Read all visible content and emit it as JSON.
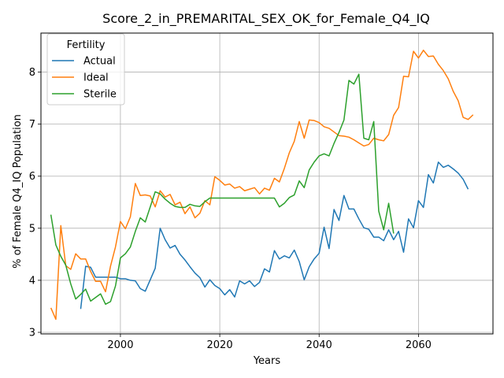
{
  "chart_data": {
    "type": "line",
    "title": "Score_2_in_PREMARITAL_SEX_OK_for_Female_Q4_IQ",
    "xlabel": "Years",
    "ylabel": "% of Female Q4_IQ Population",
    "xlim": [
      1984,
      2075
    ],
    "ylim": [
      2.97,
      8.75
    ],
    "xticks": [
      2000,
      2020,
      2040,
      2060
    ],
    "yticks": [
      3,
      4,
      5,
      6,
      7,
      8
    ],
    "grid": true,
    "legend": {
      "title": "Fertility",
      "placement": "top-left"
    },
    "series": [
      {
        "name": "Actual",
        "color": "#1f77b4",
        "points": [
          [
            1992,
            3.45
          ],
          [
            1993,
            4.27
          ],
          [
            1994,
            4.25
          ],
          [
            1995,
            4.06
          ],
          [
            1996,
            4.06
          ],
          [
            1997,
            4.06
          ],
          [
            1998,
            4.06
          ],
          [
            1999,
            4.06
          ],
          [
            2000,
            4.03
          ],
          [
            2001,
            4.03
          ],
          [
            2002,
            4.0
          ],
          [
            2003,
            3.99
          ],
          [
            2004,
            3.84
          ],
          [
            2005,
            3.79
          ],
          [
            2006,
            4.01
          ],
          [
            2007,
            4.23
          ],
          [
            2008,
            5.0
          ],
          [
            2009,
            4.78
          ],
          [
            2010,
            4.62
          ],
          [
            2011,
            4.67
          ],
          [
            2012,
            4.5
          ],
          [
            2013,
            4.39
          ],
          [
            2014,
            4.26
          ],
          [
            2015,
            4.14
          ],
          [
            2016,
            4.05
          ],
          [
            2017,
            3.87
          ],
          [
            2018,
            4.01
          ],
          [
            2019,
            3.9
          ],
          [
            2020,
            3.84
          ],
          [
            2021,
            3.72
          ],
          [
            2022,
            3.82
          ],
          [
            2023,
            3.68
          ],
          [
            2024,
            3.99
          ],
          [
            2025,
            3.93
          ],
          [
            2026,
            3.99
          ],
          [
            2027,
            3.88
          ],
          [
            2028,
            3.96
          ],
          [
            2029,
            4.22
          ],
          [
            2030,
            4.16
          ],
          [
            2031,
            4.57
          ],
          [
            2032,
            4.41
          ],
          [
            2033,
            4.47
          ],
          [
            2034,
            4.43
          ],
          [
            2035,
            4.58
          ],
          [
            2036,
            4.36
          ],
          [
            2037,
            4.01
          ],
          [
            2038,
            4.26
          ],
          [
            2039,
            4.41
          ],
          [
            2040,
            4.52
          ],
          [
            2041,
            5.02
          ],
          [
            2042,
            4.61
          ],
          [
            2043,
            5.36
          ],
          [
            2044,
            5.15
          ],
          [
            2045,
            5.63
          ],
          [
            2046,
            5.37
          ],
          [
            2047,
            5.37
          ],
          [
            2048,
            5.18
          ],
          [
            2049,
            5.01
          ],
          [
            2050,
            4.98
          ],
          [
            2051,
            4.83
          ],
          [
            2052,
            4.83
          ],
          [
            2053,
            4.76
          ],
          [
            2054,
            4.97
          ],
          [
            2055,
            4.78
          ],
          [
            2056,
            4.94
          ],
          [
            2057,
            4.54
          ],
          [
            2058,
            5.18
          ],
          [
            2059,
            5.01
          ],
          [
            2060,
            5.53
          ],
          [
            2061,
            5.4
          ],
          [
            2062,
            6.03
          ],
          [
            2063,
            5.87
          ],
          [
            2064,
            6.27
          ],
          [
            2065,
            6.17
          ],
          [
            2066,
            6.21
          ],
          [
            2067,
            6.14
          ],
          [
            2068,
            6.06
          ],
          [
            2069,
            5.94
          ],
          [
            2070,
            5.75
          ]
        ]
      },
      {
        "name": "Ideal",
        "color": "#ff7f0e",
        "points": [
          [
            1986,
            3.47
          ],
          [
            1987,
            3.25
          ],
          [
            1988,
            5.05
          ],
          [
            1989,
            4.28
          ],
          [
            1990,
            4.21
          ],
          [
            1991,
            4.51
          ],
          [
            1992,
            4.41
          ],
          [
            1993,
            4.41
          ],
          [
            1994,
            4.17
          ],
          [
            1995,
            3.98
          ],
          [
            1996,
            3.98
          ],
          [
            1997,
            3.78
          ],
          [
            1998,
            4.27
          ],
          [
            1999,
            4.64
          ],
          [
            2000,
            5.13
          ],
          [
            2001,
            4.99
          ],
          [
            2002,
            5.22
          ],
          [
            2003,
            5.86
          ],
          [
            2004,
            5.63
          ],
          [
            2005,
            5.64
          ],
          [
            2006,
            5.62
          ],
          [
            2007,
            5.41
          ],
          [
            2008,
            5.72
          ],
          [
            2009,
            5.6
          ],
          [
            2010,
            5.65
          ],
          [
            2011,
            5.45
          ],
          [
            2012,
            5.5
          ],
          [
            2013,
            5.28
          ],
          [
            2014,
            5.41
          ],
          [
            2015,
            5.2
          ],
          [
            2016,
            5.29
          ],
          [
            2017,
            5.53
          ],
          [
            2018,
            5.45
          ],
          [
            2019,
            5.99
          ],
          [
            2020,
            5.92
          ],
          [
            2021,
            5.83
          ],
          [
            2022,
            5.85
          ],
          [
            2023,
            5.77
          ],
          [
            2024,
            5.8
          ],
          [
            2025,
            5.72
          ],
          [
            2026,
            5.75
          ],
          [
            2027,
            5.78
          ],
          [
            2028,
            5.66
          ],
          [
            2029,
            5.77
          ],
          [
            2030,
            5.73
          ],
          [
            2031,
            5.96
          ],
          [
            2032,
            5.89
          ],
          [
            2033,
            6.15
          ],
          [
            2034,
            6.45
          ],
          [
            2035,
            6.67
          ],
          [
            2036,
            7.05
          ],
          [
            2037,
            6.73
          ],
          [
            2038,
            7.08
          ],
          [
            2039,
            7.07
          ],
          [
            2040,
            7.03
          ],
          [
            2041,
            6.95
          ],
          [
            2042,
            6.92
          ],
          [
            2043,
            6.85
          ],
          [
            2044,
            6.78
          ],
          [
            2045,
            6.77
          ],
          [
            2046,
            6.75
          ],
          [
            2047,
            6.7
          ],
          [
            2048,
            6.64
          ],
          [
            2049,
            6.58
          ],
          [
            2050,
            6.61
          ],
          [
            2051,
            6.73
          ],
          [
            2052,
            6.7
          ],
          [
            2053,
            6.68
          ],
          [
            2054,
            6.8
          ],
          [
            2055,
            7.17
          ],
          [
            2056,
            7.32
          ],
          [
            2057,
            7.92
          ],
          [
            2058,
            7.91
          ],
          [
            2059,
            8.4
          ],
          [
            2060,
            8.27
          ],
          [
            2061,
            8.42
          ],
          [
            2062,
            8.3
          ],
          [
            2063,
            8.31
          ],
          [
            2064,
            8.15
          ],
          [
            2065,
            8.03
          ],
          [
            2066,
            7.87
          ],
          [
            2067,
            7.63
          ],
          [
            2068,
            7.45
          ],
          [
            2069,
            7.13
          ],
          [
            2070,
            7.09
          ],
          [
            2071,
            7.18
          ]
        ]
      },
      {
        "name": "Sterile",
        "color": "#2ca02c",
        "points": [
          [
            1986,
            5.26
          ],
          [
            1987,
            4.68
          ],
          [
            1988,
            4.46
          ],
          [
            1989,
            4.29
          ],
          [
            1990,
            3.93
          ],
          [
            1991,
            3.64
          ],
          [
            1992,
            3.73
          ],
          [
            1993,
            3.83
          ],
          [
            1994,
            3.6
          ],
          [
            1995,
            3.67
          ],
          [
            1996,
            3.74
          ],
          [
            1997,
            3.54
          ],
          [
            1998,
            3.59
          ],
          [
            1999,
            3.89
          ],
          [
            2000,
            4.43
          ],
          [
            2001,
            4.51
          ],
          [
            2002,
            4.64
          ],
          [
            2003,
            4.94
          ],
          [
            2004,
            5.2
          ],
          [
            2005,
            5.12
          ],
          [
            2006,
            5.41
          ],
          [
            2007,
            5.7
          ],
          [
            2008,
            5.66
          ],
          [
            2009,
            5.56
          ],
          [
            2010,
            5.48
          ],
          [
            2011,
            5.42
          ],
          [
            2012,
            5.4
          ],
          [
            2013,
            5.4
          ],
          [
            2014,
            5.46
          ],
          [
            2015,
            5.43
          ],
          [
            2016,
            5.42
          ],
          [
            2017,
            5.51
          ],
          [
            2018,
            5.58
          ],
          [
            2019,
            5.58
          ],
          [
            2020,
            5.58
          ],
          [
            2021,
            5.58
          ],
          [
            2022,
            5.58
          ],
          [
            2023,
            5.58
          ],
          [
            2024,
            5.58
          ],
          [
            2025,
            5.58
          ],
          [
            2026,
            5.58
          ],
          [
            2027,
            5.58
          ],
          [
            2028,
            5.58
          ],
          [
            2029,
            5.58
          ],
          [
            2030,
            5.58
          ],
          [
            2031,
            5.58
          ],
          [
            2032,
            5.41
          ],
          [
            2033,
            5.48
          ],
          [
            2034,
            5.59
          ],
          [
            2035,
            5.64
          ],
          [
            2036,
            5.91
          ],
          [
            2037,
            5.78
          ],
          [
            2038,
            6.12
          ],
          [
            2039,
            6.27
          ],
          [
            2040,
            6.39
          ],
          [
            2041,
            6.43
          ],
          [
            2042,
            6.39
          ],
          [
            2043,
            6.63
          ],
          [
            2044,
            6.84
          ],
          [
            2045,
            7.08
          ],
          [
            2046,
            7.84
          ],
          [
            2047,
            7.77
          ],
          [
            2048,
            7.96
          ],
          [
            2049,
            6.73
          ],
          [
            2050,
            6.7
          ],
          [
            2051,
            7.05
          ],
          [
            2052,
            5.33
          ],
          [
            2053,
            4.97
          ],
          [
            2054,
            5.48
          ],
          [
            2055,
            4.9
          ]
        ]
      }
    ]
  }
}
